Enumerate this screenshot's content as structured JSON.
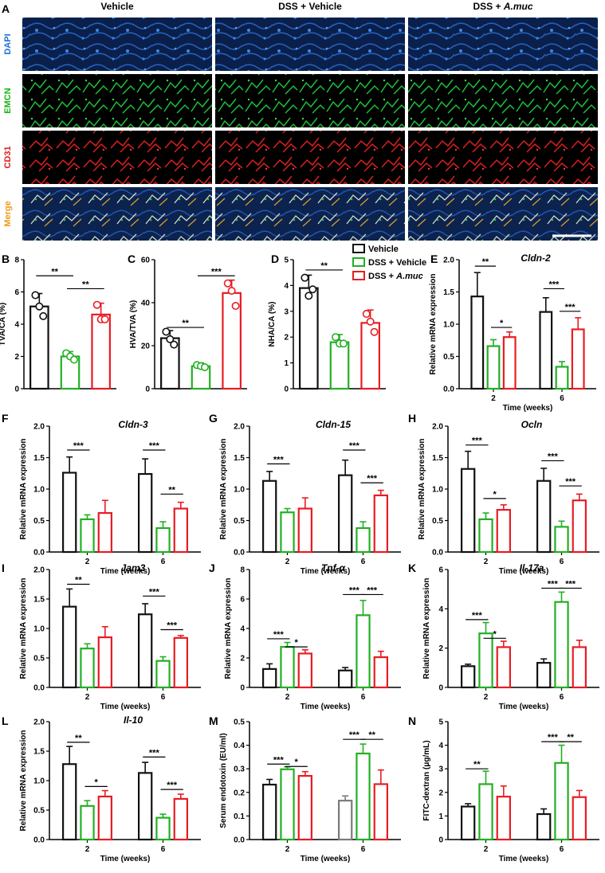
{
  "figure_label": "A",
  "micrograph": {
    "column_titles": [
      "Vehicle",
      "DSS + Vehicle",
      "DSS + A.muc"
    ],
    "row_labels": [
      {
        "text": "DAPI",
        "color": "#1e6fd9"
      },
      {
        "text": "EMCN",
        "color": "#19b319"
      },
      {
        "text": "CD31",
        "color": "#e01b1b"
      },
      {
        "text": "Merge",
        "color": "#f09a18"
      }
    ]
  },
  "legend": {
    "entries": [
      {
        "label": "Vehicle",
        "color": "#111111"
      },
      {
        "label": "DSS + Vehicle",
        "color": "#22b022"
      },
      {
        "label": "DSS + A.muc",
        "color": "#e81c24"
      }
    ]
  },
  "colors": {
    "vehicle": "#111111",
    "dss": "#22b022",
    "amuc": "#e81c24",
    "gray": "#7a7a7a"
  },
  "chart_data": [
    {
      "id": "B",
      "type": "bar",
      "ylabel": "TVA/CA (%)",
      "ylim": [
        0,
        8
      ],
      "yticks": [
        0,
        2,
        4,
        6,
        8
      ],
      "values": [
        5.1,
        2.0,
        4.6
      ],
      "errors": [
        0.8,
        0.3,
        0.7
      ],
      "points": [
        [
          5.8,
          5.1,
          4.5
        ],
        [
          2.2,
          2.0,
          1.8
        ],
        [
          5.2,
          4.3,
          4.3
        ]
      ],
      "sig": [
        {
          "from": 0,
          "to": 1,
          "y": 7.0,
          "label": "**"
        },
        {
          "from": 1,
          "to": 2,
          "y": 6.2,
          "label": "**"
        }
      ]
    },
    {
      "id": "C",
      "type": "bar",
      "ylabel": "HVA/TVA (%)",
      "ylim": [
        0,
        60
      ],
      "yticks": [
        0,
        20,
        40,
        60
      ],
      "values": [
        23.5,
        10.5,
        44.5
      ],
      "errors": [
        3.5,
        1.5,
        6.0
      ],
      "points": [
        [
          26.5,
          23.0,
          20.5
        ],
        [
          11.0,
          10.5,
          10.0
        ],
        [
          49.0,
          45.5,
          38.5
        ]
      ],
      "sig": [
        {
          "from": 0,
          "to": 1,
          "y": 28.5,
          "label": "**"
        },
        {
          "from": 1,
          "to": 2,
          "y": 52.5,
          "label": "***"
        }
      ]
    },
    {
      "id": "D",
      "type": "bar",
      "ylabel": "NHA/CA (%)",
      "ylim": [
        0,
        5
      ],
      "yticks": [
        0,
        1,
        2,
        3,
        4,
        5
      ],
      "values": [
        3.9,
        1.8,
        2.55
      ],
      "errors": [
        0.5,
        0.3,
        0.5
      ],
      "points": [
        [
          4.3,
          3.6,
          3.85
        ],
        [
          2.0,
          1.75,
          1.75
        ],
        [
          2.9,
          2.6,
          2.2
        ]
      ],
      "sig": [
        {
          "from": 0,
          "to": 1,
          "y": 4.6,
          "label": "**"
        }
      ]
    },
    {
      "id": "E",
      "type": "grouped_bar",
      "gene": "Cldn-2",
      "ylabel": "Relative mRNA expression",
      "xlabel": "Time (weeks)",
      "categories": [
        "2",
        "6"
      ],
      "ylim": [
        0,
        2.0
      ],
      "yticks": [
        0,
        0.5,
        1.0,
        1.5,
        2.0
      ],
      "ytick_labels": [
        "0.0",
        "0.5",
        "1.0",
        "1.5",
        "2.0"
      ],
      "series": [
        {
          "name": "Vehicle",
          "values": [
            1.43,
            1.19
          ],
          "errors": [
            0.37,
            0.22
          ]
        },
        {
          "name": "DSS + Vehicle",
          "values": [
            0.66,
            0.34
          ],
          "errors": [
            0.1,
            0.08
          ]
        },
        {
          "name": "DSS + A.muc",
          "values": [
            0.8,
            0.92
          ],
          "errors": [
            0.08,
            0.18
          ]
        }
      ],
      "sig": [
        {
          "group": 0,
          "from": 0,
          "to": 1,
          "y": 1.9,
          "label": "**"
        },
        {
          "group": 0,
          "from": 1,
          "to": 2,
          "y": 0.95,
          "label": "*"
        },
        {
          "group": 1,
          "from": 0,
          "to": 1,
          "y": 1.55,
          "label": "***"
        },
        {
          "group": 1,
          "from": 1,
          "to": 2,
          "y": 1.2,
          "label": "***"
        }
      ]
    },
    {
      "id": "F",
      "type": "grouped_bar",
      "gene": "Cldn-3",
      "ylabel": "Relative mRNA expression",
      "xlabel": "Time (weeks)",
      "categories": [
        "2",
        "6"
      ],
      "ylim": [
        0,
        2.0
      ],
      "yticks": [
        0,
        0.5,
        1.0,
        1.5,
        2.0
      ],
      "ytick_labels": [
        "0.0",
        "0.5",
        "1.0",
        "1.5",
        "2.0"
      ],
      "series": [
        {
          "name": "Vehicle",
          "values": [
            1.26,
            1.24
          ],
          "errors": [
            0.25,
            0.24
          ]
        },
        {
          "name": "DSS + Vehicle",
          "values": [
            0.52,
            0.38
          ],
          "errors": [
            0.07,
            0.1
          ]
        },
        {
          "name": "DSS + A.muc",
          "values": [
            0.62,
            0.69
          ],
          "errors": [
            0.2,
            0.1
          ]
        }
      ],
      "sig": [
        {
          "group": 0,
          "from": 0,
          "to": 1,
          "y": 1.62,
          "label": "***"
        },
        {
          "group": 1,
          "from": 0,
          "to": 1,
          "y": 1.62,
          "label": "***"
        },
        {
          "group": 1,
          "from": 1,
          "to": 2,
          "y": 0.92,
          "label": "**"
        }
      ]
    },
    {
      "id": "G",
      "type": "grouped_bar",
      "gene": "Cldn-15",
      "ylabel": "Relative mRNA expression",
      "xlabel": "Time (weeks)",
      "categories": [
        "2",
        "6"
      ],
      "ylim": [
        0,
        2.0
      ],
      "yticks": [
        0,
        0.5,
        1.0,
        1.5,
        2.0
      ],
      "ytick_labels": [
        "0.0",
        "0.5",
        "1.0",
        "1.5",
        "2.0"
      ],
      "series": [
        {
          "name": "Vehicle",
          "values": [
            1.13,
            1.22
          ],
          "errors": [
            0.15,
            0.24
          ]
        },
        {
          "name": "DSS + Vehicle",
          "values": [
            0.63,
            0.38
          ],
          "errors": [
            0.06,
            0.1
          ]
        },
        {
          "name": "DSS + A.muc",
          "values": [
            0.69,
            0.9
          ],
          "errors": [
            0.17,
            0.08
          ]
        }
      ],
      "sig": [
        {
          "group": 0,
          "from": 0,
          "to": 1,
          "y": 1.4,
          "label": "***"
        },
        {
          "group": 1,
          "from": 0,
          "to": 1,
          "y": 1.62,
          "label": "***"
        },
        {
          "group": 1,
          "from": 1,
          "to": 2,
          "y": 1.1,
          "label": "***"
        }
      ]
    },
    {
      "id": "H",
      "type": "grouped_bar",
      "gene": "Ocln",
      "ylabel": "Relative mRNA expression",
      "xlabel": "Time (weeks)",
      "categories": [
        "2",
        "6"
      ],
      "ylim": [
        0,
        2.0
      ],
      "yticks": [
        0,
        0.5,
        1.0,
        1.5,
        2.0
      ],
      "ytick_labels": [
        "0.0",
        "0.5",
        "1.0",
        "1.5",
        "2.0"
      ],
      "series": [
        {
          "name": "Vehicle",
          "values": [
            1.32,
            1.13
          ],
          "errors": [
            0.28,
            0.2
          ]
        },
        {
          "name": "DSS + Vehicle",
          "values": [
            0.52,
            0.4
          ],
          "errors": [
            0.1,
            0.09
          ]
        },
        {
          "name": "DSS + A.muc",
          "values": [
            0.67,
            0.82
          ],
          "errors": [
            0.08,
            0.1
          ]
        }
      ],
      "sig": [
        {
          "group": 0,
          "from": 0,
          "to": 1,
          "y": 1.7,
          "label": "***"
        },
        {
          "group": 0,
          "from": 1,
          "to": 2,
          "y": 0.85,
          "label": "*"
        },
        {
          "group": 1,
          "from": 0,
          "to": 1,
          "y": 1.45,
          "label": "***"
        },
        {
          "group": 1,
          "from": 1,
          "to": 2,
          "y": 1.05,
          "label": "***"
        }
      ]
    },
    {
      "id": "I",
      "type": "grouped_bar",
      "gene": "Jam3",
      "ylabel": "Relative mRNA expression",
      "xlabel": "Time (weeks)",
      "categories": [
        "2",
        "6"
      ],
      "ylim": [
        0,
        2.0
      ],
      "yticks": [
        0,
        0.5,
        1.0,
        1.5,
        2.0
      ],
      "ytick_labels": [
        "0.0",
        "0.5",
        "1.0",
        "1.5",
        "2.0"
      ],
      "series": [
        {
          "name": "Vehicle",
          "values": [
            1.37,
            1.24
          ],
          "errors": [
            0.3,
            0.18
          ]
        },
        {
          "name": "DSS + Vehicle",
          "values": [
            0.66,
            0.45
          ],
          "errors": [
            0.08,
            0.07
          ]
        },
        {
          "name": "DSS + A.muc",
          "values": [
            0.85,
            0.84
          ],
          "errors": [
            0.18,
            0.04
          ]
        }
      ],
      "sig": [
        {
          "group": 0,
          "from": 0,
          "to": 1,
          "y": 1.75,
          "label": "**"
        },
        {
          "group": 1,
          "from": 0,
          "to": 1,
          "y": 1.55,
          "label": "***"
        },
        {
          "group": 1,
          "from": 1,
          "to": 2,
          "y": 0.98,
          "label": "***"
        }
      ]
    },
    {
      "id": "J",
      "type": "grouped_bar",
      "gene": "Tnf-α",
      "ylabel": "Relative mRNA expression",
      "xlabel": "Time (weeks)",
      "categories": [
        "2",
        "6"
      ],
      "ylim": [
        0,
        8
      ],
      "yticks": [
        0,
        2,
        4,
        6,
        8
      ],
      "ytick_labels": [
        "0",
        "2",
        "4",
        "6",
        "8"
      ],
      "series": [
        {
          "name": "Vehicle",
          "values": [
            1.25,
            1.15
          ],
          "errors": [
            0.35,
            0.2
          ]
        },
        {
          "name": "DSS + Vehicle",
          "values": [
            2.75,
            4.9
          ],
          "errors": [
            0.3,
            1.0
          ]
        },
        {
          "name": "DSS + A.muc",
          "values": [
            2.3,
            2.05
          ],
          "errors": [
            0.25,
            0.4
          ]
        }
      ],
      "sig": [
        {
          "group": 0,
          "from": 0,
          "to": 1,
          "y": 3.3,
          "label": "***"
        },
        {
          "group": 0,
          "from": 1,
          "to": 2,
          "y": 2.75,
          "label": "*"
        },
        {
          "group": 1,
          "from": 0,
          "to": 1,
          "y": 6.3,
          "label": "***"
        },
        {
          "group": 1,
          "from": 1,
          "to": 2,
          "y": 6.3,
          "label": "***"
        }
      ]
    },
    {
      "id": "K",
      "type": "grouped_bar",
      "gene": "Il-17a",
      "ylabel": "Relative mRNA expression",
      "xlabel": "Time (weeks)",
      "categories": [
        "2",
        "6"
      ],
      "ylim": [
        0,
        6
      ],
      "yticks": [
        0,
        2,
        4,
        6
      ],
      "ytick_labels": [
        "0",
        "2",
        "4",
        "6"
      ],
      "series": [
        {
          "name": "Vehicle",
          "values": [
            1.08,
            1.25
          ],
          "errors": [
            0.1,
            0.2
          ]
        },
        {
          "name": "DSS + Vehicle",
          "values": [
            2.75,
            4.35
          ],
          "errors": [
            0.55,
            0.5
          ]
        },
        {
          "name": "DSS + A.muc",
          "values": [
            2.05,
            2.05
          ],
          "errors": [
            0.3,
            0.35
          ]
        }
      ],
      "sig": [
        {
          "group": 0,
          "from": 0,
          "to": 1,
          "y": 3.45,
          "label": "***"
        },
        {
          "group": 0,
          "from": 1,
          "to": 2,
          "y": 2.5,
          "label": "*"
        },
        {
          "group": 1,
          "from": 0,
          "to": 1,
          "y": 5.05,
          "label": "***"
        },
        {
          "group": 1,
          "from": 1,
          "to": 2,
          "y": 5.05,
          "label": "***"
        }
      ]
    },
    {
      "id": "L",
      "type": "grouped_bar",
      "gene": "Il-10",
      "ylabel": "Relative mRNA expression",
      "xlabel": "Time (weeks)",
      "categories": [
        "2",
        "6"
      ],
      "ylim": [
        0,
        2.0
      ],
      "yticks": [
        0,
        0.5,
        1.0,
        1.5,
        2.0
      ],
      "ytick_labels": [
        "0.0",
        "0.5",
        "1.0",
        "1.5",
        "2.0"
      ],
      "series": [
        {
          "name": "Vehicle",
          "values": [
            1.28,
            1.13
          ],
          "errors": [
            0.3,
            0.18
          ]
        },
        {
          "name": "DSS + Vehicle",
          "values": [
            0.57,
            0.37
          ],
          "errors": [
            0.09,
            0.06
          ]
        },
        {
          "name": "DSS + A.muc",
          "values": [
            0.73,
            0.69
          ],
          "errors": [
            0.1,
            0.08
          ]
        }
      ],
      "sig": [
        {
          "group": 0,
          "from": 0,
          "to": 1,
          "y": 1.65,
          "label": "**"
        },
        {
          "group": 0,
          "from": 1,
          "to": 2,
          "y": 0.9,
          "label": "*"
        },
        {
          "group": 1,
          "from": 0,
          "to": 1,
          "y": 1.4,
          "label": "***"
        },
        {
          "group": 1,
          "from": 1,
          "to": 2,
          "y": 0.85,
          "label": "***"
        }
      ]
    },
    {
      "id": "M",
      "type": "grouped_bar",
      "gene": "",
      "ylabel": "Serum endotoxin (EU/ml)",
      "xlabel": "Time (weeks)",
      "categories": [
        "2",
        "6"
      ],
      "ylim": [
        0,
        0.5
      ],
      "yticks": [
        0,
        0.1,
        0.2,
        0.3,
        0.4,
        0.5
      ],
      "ytick_labels": [
        "0.0",
        "0.1",
        "0.2",
        "0.3",
        "0.4",
        "0.5"
      ],
      "series": [
        {
          "name": "Vehicle",
          "values": [
            0.233,
            0.165
          ],
          "errors": [
            0.022,
            0.02
          ],
          "colors": [
            "vehicle",
            "gray"
          ]
        },
        {
          "name": "DSS + Vehicle",
          "values": [
            0.298,
            0.365
          ],
          "errors": [
            0.01,
            0.04
          ]
        },
        {
          "name": "DSS + A.muc",
          "values": [
            0.27,
            0.235
          ],
          "errors": [
            0.018,
            0.06
          ]
        }
      ],
      "sig": [
        {
          "group": 0,
          "from": 0,
          "to": 1,
          "y": 0.32,
          "label": "***"
        },
        {
          "group": 0,
          "from": 1,
          "to": 2,
          "y": 0.31,
          "label": "*"
        },
        {
          "group": 1,
          "from": 0,
          "to": 1,
          "y": 0.425,
          "label": "***"
        },
        {
          "group": 1,
          "from": 1,
          "to": 2,
          "y": 0.425,
          "label": "**"
        }
      ]
    },
    {
      "id": "N",
      "type": "grouped_bar",
      "gene": "",
      "ylabel": "FITC-dextran (μg/mL)",
      "xlabel": "Time (weeks)",
      "categories": [
        "2",
        "6"
      ],
      "ylim": [
        0,
        5
      ],
      "yticks": [
        0,
        1,
        2,
        3,
        4,
        5
      ],
      "ytick_labels": [
        "0",
        "1",
        "2",
        "3",
        "4",
        "5"
      ],
      "series": [
        {
          "name": "Vehicle",
          "values": [
            1.4,
            1.08
          ],
          "errors": [
            0.12,
            0.22
          ]
        },
        {
          "name": "DSS + Vehicle",
          "values": [
            2.35,
            3.25
          ],
          "errors": [
            0.55,
            0.75
          ]
        },
        {
          "name": "DSS + A.muc",
          "values": [
            1.82,
            1.8
          ],
          "errors": [
            0.45,
            0.28
          ]
        }
      ],
      "sig": [
        {
          "group": 0,
          "from": 0,
          "to": 1,
          "y": 3.0,
          "label": "**"
        },
        {
          "group": 1,
          "from": 0,
          "to": 1,
          "y": 4.15,
          "label": "***"
        },
        {
          "group": 1,
          "from": 1,
          "to": 2,
          "y": 4.15,
          "label": "**"
        }
      ]
    }
  ]
}
